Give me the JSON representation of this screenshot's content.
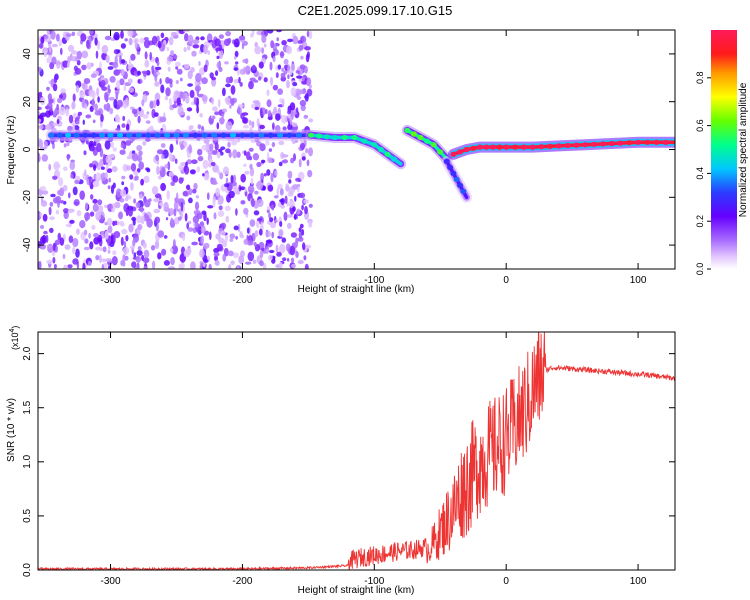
{
  "title": "C2E1.2025.099.17.10.G15",
  "colors": {
    "snr_line": "#ee3333",
    "background": "#ffffff"
  },
  "chart_data": [
    {
      "type": "heatmap",
      "name": "spectrogram",
      "xlabel": "Height of straight line (km)",
      "ylabel": "Frequency (Hz)",
      "xlim": [
        -355,
        128
      ],
      "ylim": [
        -50,
        50
      ],
      "xticks": [
        "-300",
        "-200",
        "-100",
        "0",
        "100"
      ],
      "yticks": [
        "-40",
        "-20",
        "0",
        "20",
        "40"
      ],
      "colorbar": {
        "label": "Normalized spectral amplitude",
        "range": [
          0,
          1
        ],
        "ticks": [
          "0.0",
          "0.2",
          "0.4",
          "0.6",
          "0.8"
        ]
      },
      "noise_region": {
        "x_range": [
          -355,
          -148
        ],
        "f_range": [
          -50,
          50
        ]
      },
      "tracks": [
        {
          "x": [
            -345,
            -300,
            -250,
            -200,
            -150
          ],
          "f": [
            6,
            6,
            6,
            6,
            6
          ],
          "amplitude": 0.3
        },
        {
          "x": [
            -148,
            -130,
            -115,
            -100,
            -90,
            -80
          ],
          "f": [
            6,
            5,
            5,
            2,
            -2,
            -6
          ],
          "amplitude": 0.45
        },
        {
          "x": [
            -75,
            -65,
            -55,
            -45
          ],
          "f": [
            8,
            5,
            2,
            -4
          ],
          "amplitude": 0.5
        },
        {
          "x": [
            -45,
            -40,
            -35,
            -30
          ],
          "f": [
            -5,
            -10,
            -15,
            -20
          ],
          "amplitude": 0.25
        },
        {
          "x": [
            -40,
            -30,
            -20,
            -10,
            0,
            20,
            40,
            60,
            80,
            100,
            128
          ],
          "f": [
            -2,
            0,
            1,
            1,
            1,
            1,
            1.5,
            2,
            2.5,
            3,
            3
          ],
          "amplitude": 0.95
        }
      ]
    },
    {
      "type": "line",
      "name": "snr",
      "xlabel": "Height of straight line (km)",
      "ylabel": "SNR (10 * v/v)",
      "scale_label": "(x10",
      "scale_exp": "4",
      "xlim": [
        -355,
        128
      ],
      "ylim": [
        0,
        2.2
      ],
      "xticks": [
        "-300",
        "-200",
        "-100",
        "0",
        "100"
      ],
      "yticks": [
        "0.0",
        "0.5",
        "1.0",
        "1.5",
        "2.0"
      ],
      "x": [
        -355,
        -300,
        -250,
        -200,
        -150,
        -120,
        -110,
        -100,
        -90,
        -80,
        -70,
        -60,
        -55,
        -50,
        -45,
        -40,
        -35,
        -30,
        -25,
        -20,
        -15,
        -10,
        -5,
        0,
        5,
        10,
        15,
        20,
        25,
        30,
        35,
        40,
        50,
        60,
        70,
        80,
        90,
        100,
        110,
        128
      ],
      "y": [
        0.01,
        0.01,
        0.01,
        0.01,
        0.02,
        0.04,
        0.08,
        0.1,
        0.12,
        0.14,
        0.15,
        0.18,
        0.25,
        0.35,
        0.45,
        0.55,
        0.7,
        0.8,
        0.9,
        1.0,
        1.05,
        1.1,
        1.15,
        1.2,
        1.3,
        1.4,
        1.5,
        1.65,
        1.78,
        1.85,
        1.87,
        1.87,
        1.86,
        1.85,
        1.84,
        1.83,
        1.82,
        1.81,
        1.8,
        1.77
      ]
    }
  ]
}
